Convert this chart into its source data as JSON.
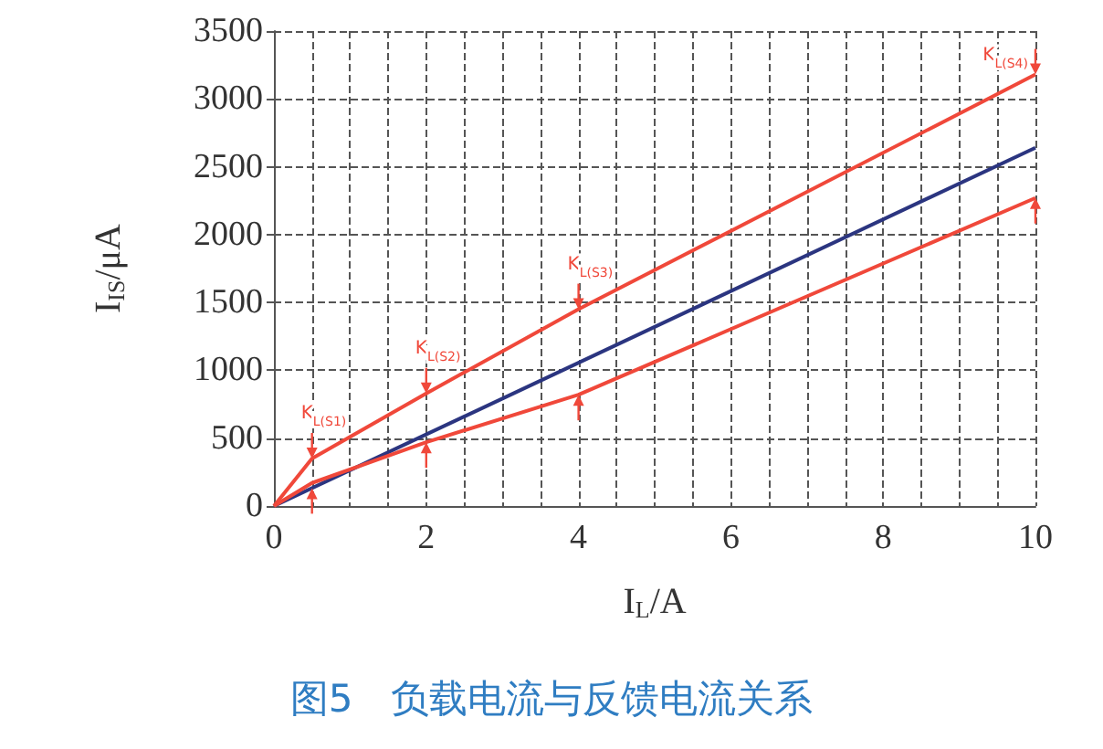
{
  "chart_data": {
    "type": "line",
    "title": "图5　负载电流与反馈电流关系",
    "xlabel": "I$_{L}$/A",
    "ylabel": "I$_{IS}$/μA",
    "series": [
      {
        "color": "#f0483a",
        "x": [
          0,
          0.5,
          2,
          4,
          10
        ],
        "values": [
          0,
          350,
          830,
          1450,
          3180
        ]
      },
      {
        "color": "#2b3580",
        "x": [
          0,
          10
        ],
        "values": [
          0,
          2640
        ]
      },
      {
        "color": "#f0483a",
        "x": [
          0,
          0.5,
          2,
          4,
          10
        ],
        "values": [
          0,
          170,
          470,
          820,
          2270
        ]
      }
    ],
    "xlim": [
      0,
      10
    ],
    "xticks": [
      0,
      2,
      4,
      6,
      8,
      10
    ],
    "ylim": [
      0,
      3500
    ],
    "yticks": [
      0,
      500,
      1000,
      1500,
      2000,
      2500,
      3000,
      3500
    ],
    "grid": true,
    "marker": "none",
    "line_style": "solid",
    "annotations": [
      {
        "text": "K$_{L(S1)}$",
        "x": 0.5,
        "y": 350
      },
      {
        "text": "K$_{L(S2)}$",
        "x": 2,
        "y": 830
      },
      {
        "text": "K$_{L(S3)}$",
        "x": 4,
        "y": 1450
      },
      {
        "text": "K$_{L(S4)}$",
        "x": 10,
        "y": 3180
      }
    ]
  }
}
